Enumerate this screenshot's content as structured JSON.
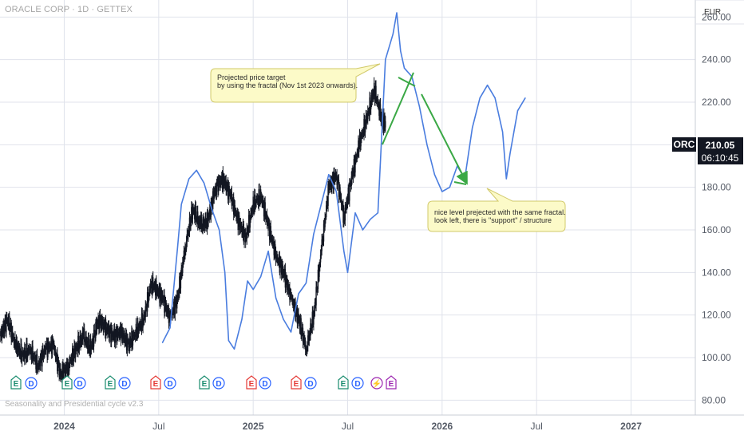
{
  "header": {
    "symbol_title": "ORACLE CORP · 1D · GETTEX",
    "currency": "EUR"
  },
  "indicator": {
    "label": "Seasonality and Presidential cycle v2.3"
  },
  "price_badge": {
    "ticker": "ORC",
    "price": "210.05",
    "countdown": "06:10:45"
  },
  "annotations": {
    "top": {
      "line1": "Projected price target",
      "line2": "by using the fractal (Nov 1st 2023 onwards)."
    },
    "bottom": {
      "line1": "nice level prejected with the same fractal.",
      "line2": "look left, there is \"support\" / structure"
    }
  },
  "event_markers": [
    {
      "type": "E",
      "color": "#1a8c6f"
    },
    {
      "type": "D",
      "color": "#2962ff"
    },
    {
      "type": "E",
      "color": "#1a8c6f"
    },
    {
      "type": "D",
      "color": "#2962ff"
    },
    {
      "type": "E",
      "color": "#1a8c6f"
    },
    {
      "type": "D",
      "color": "#2962ff"
    },
    {
      "type": "E",
      "color": "#e53935"
    },
    {
      "type": "D",
      "color": "#2962ff"
    },
    {
      "type": "E",
      "color": "#1a8c6f"
    },
    {
      "type": "D",
      "color": "#2962ff"
    },
    {
      "type": "E",
      "color": "#e53935"
    },
    {
      "type": "D",
      "color": "#2962ff"
    },
    {
      "type": "E",
      "color": "#e53935"
    },
    {
      "type": "D",
      "color": "#2962ff"
    },
    {
      "type": "E",
      "color": "#1a8c6f"
    },
    {
      "type": "D",
      "color": "#2962ff"
    },
    {
      "type": "S",
      "color": "#9c27b0"
    },
    {
      "type": "E",
      "color": "#9c27b0"
    }
  ],
  "colors": {
    "candles": "#131722",
    "fractal": "#4a7ddf",
    "arrows": "#3aa845",
    "grid": "#e0e3eb",
    "badge_bg": "#131722",
    "callout_bg": "#fcfac8",
    "callout_border": "#d1c96a"
  },
  "chart_data": {
    "type": "line",
    "title": "ORACLE CORP · 1D · GETTEX",
    "ylim": [
      73,
      268
    ],
    "y_ticks": [
      "80.00",
      "100.00",
      "120.00",
      "140.00",
      "160.00",
      "180.00",
      "200.00",
      "220.00",
      "240.00",
      "260.00"
    ],
    "x_ticks": [
      "2024",
      "Jul",
      "2025",
      "Jul",
      "2026",
      "Jul",
      "2027"
    ],
    "x_tick_positions": [
      2024.0,
      2024.5,
      2025.0,
      2025.5,
      2026.0,
      2026.5,
      2027.0
    ],
    "xlim": [
      2023.66,
      2027.34
    ],
    "grid": true,
    "series": [
      {
        "style": "candlestick",
        "x": [
          2023.66,
          2023.7,
          2023.74,
          2023.78,
          2023.82,
          2023.86,
          2023.9,
          2023.94,
          2023.98,
          2024.02,
          2024.06,
          2024.1,
          2024.14,
          2024.18,
          2024.22,
          2024.26,
          2024.3,
          2024.34,
          2024.38,
          2024.42,
          2024.46,
          2024.49,
          2024.52,
          2024.56,
          2024.6,
          2024.64,
          2024.68,
          2024.72,
          2024.76,
          2024.8,
          2024.84,
          2024.88,
          2024.92,
          2024.96,
          2025.0,
          2025.04,
          2025.08,
          2025.12,
          2025.16,
          2025.2,
          2025.24,
          2025.28,
          2025.32,
          2025.36,
          2025.4,
          2025.44,
          2025.48,
          2025.52,
          2025.56,
          2025.6,
          2025.64,
          2025.68,
          2025.7
        ],
        "values": [
          110,
          118,
          106,
          101,
          104,
          96,
          104,
          106,
          92,
          96,
          104,
          110,
          104,
          118,
          114,
          110,
          112,
          106,
          112,
          118,
          135,
          132,
          128,
          118,
          128,
          152,
          170,
          162,
          164,
          180,
          184,
          176,
          164,
          156,
          172,
          176,
          162,
          148,
          140,
          128,
          118,
          104,
          120,
          150,
          180,
          186,
          166,
          184,
          200,
          212,
          226,
          212,
          210
        ]
      },
      {
        "style": "line",
        "x": [
          2024.52,
          2024.56,
          2024.6,
          2024.62,
          2024.66,
          2024.7,
          2024.74,
          2024.78,
          2024.82,
          2024.85,
          2024.87,
          2024.9,
          2024.94,
          2024.97,
          2025.0,
          2025.04,
          2025.08,
          2025.12,
          2025.16,
          2025.2,
          2025.24,
          2025.28,
          2025.32,
          2025.36,
          2025.4,
          2025.44,
          2025.48,
          2025.5,
          2025.54,
          2025.58,
          2025.62,
          2025.66,
          2025.7,
          2025.74,
          2025.76,
          2025.78,
          2025.8,
          2025.84,
          2025.88,
          2025.92,
          2025.96,
          2026.0,
          2026.04,
          2026.08,
          2026.12,
          2026.16,
          2026.2,
          2026.24,
          2026.28,
          2026.32,
          2026.34,
          2026.36,
          2026.4,
          2026.44
        ],
        "values": [
          107,
          114,
          152,
          172,
          184,
          188,
          182,
          170,
          160,
          140,
          108,
          104,
          118,
          136,
          132,
          138,
          150,
          128,
          118,
          112,
          130,
          135,
          158,
          172,
          186,
          178,
          150,
          140,
          168,
          160,
          165,
          168,
          240,
          252,
          262,
          244,
          236,
          232,
          218,
          200,
          186,
          178,
          180,
          190,
          184,
          208,
          222,
          228,
          222,
          206,
          184,
          196,
          216,
          222
        ]
      }
    ]
  }
}
